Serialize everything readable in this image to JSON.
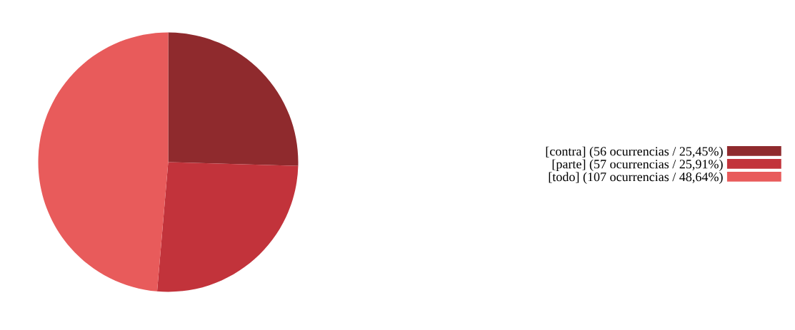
{
  "chart_data": {
    "type": "pie",
    "categories": [
      "[contra] (56 ocurrencias / 25,45%)",
      "[parte] (57 ocurrencias / 25,91%)",
      "[todo] (107 ocurrencias / 48,64%)"
    ],
    "values": [
      25.45,
      25.91,
      48.64
    ],
    "colors": [
      "#8f2a2d",
      "#c2333b",
      "#e85b5b"
    ],
    "legend": "right"
  }
}
